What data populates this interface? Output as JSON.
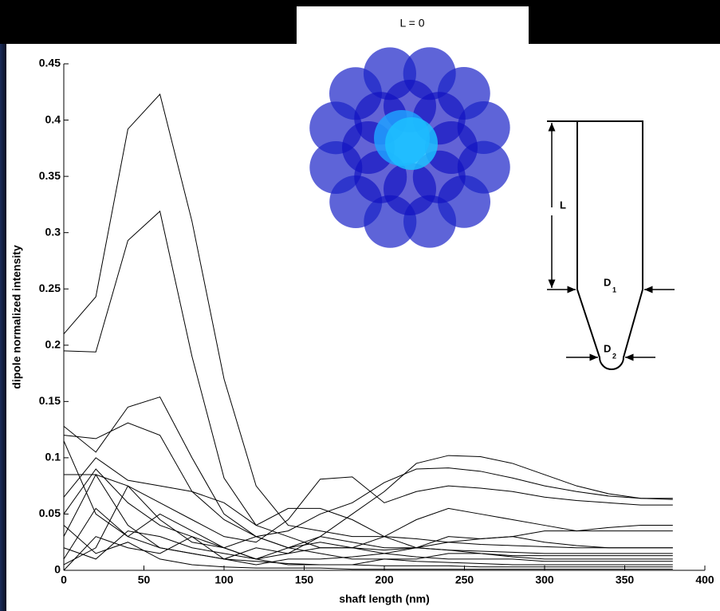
{
  "chart_data": {
    "type": "line",
    "xlabel": "shaft length (nm)",
    "ylabel": "dipole normalized intensity",
    "xlim": [
      0,
      400
    ],
    "xticks": [
      0,
      50,
      100,
      150,
      200,
      250,
      300,
      350,
      400
    ],
    "ylim": [
      0,
      0.45
    ],
    "yticks": [
      0,
      0.05,
      0.1,
      0.15,
      0.2,
      0.25,
      0.3,
      0.35,
      0.4,
      0.45
    ],
    "x": [
      0,
      20,
      40,
      60,
      80,
      100,
      120,
      140,
      160,
      180,
      200,
      220,
      240,
      260,
      280,
      300,
      320,
      340,
      360,
      380
    ],
    "series": [
      {
        "color": "#000000",
        "values": [
          0.21,
          0.243,
          0.392,
          0.423,
          0.31,
          0.17,
          0.075,
          0.04,
          0.035,
          0.03,
          0.03,
          0.028,
          0.025,
          0.023,
          0.022,
          0.021,
          0.02,
          0.02,
          0.02,
          0.02
        ]
      },
      {
        "color": "#000000",
        "values": [
          0.195,
          0.194,
          0.293,
          0.319,
          0.19,
          0.082,
          0.04,
          0.055,
          0.055,
          0.045,
          0.03,
          0.02,
          0.018,
          0.017,
          0.016,
          0.015,
          0.015,
          0.015,
          0.015,
          0.015
        ]
      },
      {
        "color": "#000000",
        "values": [
          0.128,
          0.105,
          0.145,
          0.154,
          0.1,
          0.05,
          0.03,
          0.035,
          0.05,
          0.06,
          0.078,
          0.09,
          0.091,
          0.088,
          0.082,
          0.075,
          0.07,
          0.066,
          0.064,
          0.063
        ]
      },
      {
        "color": "#000000",
        "values": [
          0.12,
          0.117,
          0.131,
          0.12,
          0.07,
          0.045,
          0.03,
          0.02,
          0.03,
          0.05,
          0.07,
          0.095,
          0.102,
          0.101,
          0.095,
          0.085,
          0.075,
          0.068,
          0.064,
          0.064
        ]
      },
      {
        "color": "#000000",
        "values": [
          0.085,
          0.085,
          0.075,
          0.06,
          0.045,
          0.03,
          0.025,
          0.045,
          0.081,
          0.083,
          0.06,
          0.07,
          0.075,
          0.073,
          0.07,
          0.065,
          0.062,
          0.06,
          0.058,
          0.058
        ]
      },
      {
        "color": "#000000",
        "values": [
          0.065,
          0.1,
          0.08,
          0.075,
          0.07,
          0.06,
          0.04,
          0.03,
          0.02,
          0.02,
          0.03,
          0.045,
          0.055,
          0.05,
          0.045,
          0.04,
          0.035,
          0.035,
          0.035,
          0.035
        ]
      },
      {
        "color": "#000000",
        "values": [
          0.115,
          0.05,
          0.03,
          0.02,
          0.015,
          0.01,
          0.008,
          0.006,
          0.005,
          0.005,
          0.004,
          0.004,
          0.004,
          0.003,
          0.003,
          0.003,
          0.003,
          0.003,
          0.003,
          0.003
        ]
      },
      {
        "color": "#000000",
        "values": [
          0.05,
          0.09,
          0.06,
          0.04,
          0.03,
          0.02,
          0.01,
          0.02,
          0.025,
          0.02,
          0.018,
          0.02,
          0.03,
          0.028,
          0.03,
          0.035,
          0.035,
          0.038,
          0.04,
          0.04
        ]
      },
      {
        "color": "#000000",
        "values": [
          0.03,
          0.085,
          0.04,
          0.02,
          0.015,
          0.01,
          0.005,
          0.01,
          0.01,
          0.012,
          0.015,
          0.02,
          0.025,
          0.028,
          0.03,
          0.025,
          0.022,
          0.02,
          0.02,
          0.02
        ]
      },
      {
        "color": "#000000",
        "values": [
          0.02,
          0.01,
          0.035,
          0.03,
          0.02,
          0.015,
          0.01,
          0.015,
          0.02,
          0.02,
          0.015,
          0.012,
          0.01,
          0.01,
          0.01,
          0.008,
          0.008,
          0.008,
          0.008,
          0.008
        ]
      },
      {
        "color": "#000000",
        "values": [
          0.01,
          0.055,
          0.03,
          0.05,
          0.035,
          0.02,
          0.01,
          0.005,
          0.005,
          0.005,
          0.01,
          0.01,
          0.015,
          0.015,
          0.012,
          0.01,
          0.01,
          0.01,
          0.01,
          0.01
        ]
      },
      {
        "color": "#000000",
        "values": [
          0.005,
          0.02,
          0.075,
          0.045,
          0.025,
          0.02,
          0.03,
          0.02,
          0.015,
          0.01,
          0.01,
          0.008,
          0.007,
          0.006,
          0.005,
          0.005,
          0.005,
          0.005,
          0.005,
          0.005
        ]
      },
      {
        "color": "#000000",
        "values": [
          0.0,
          0.03,
          0.02,
          0.015,
          0.03,
          0.01,
          0.02,
          0.015,
          0.03,
          0.025,
          0.02,
          0.02,
          0.018,
          0.015,
          0.013,
          0.013,
          0.013,
          0.013,
          0.013,
          0.013
        ]
      },
      {
        "color": "#000000",
        "values": [
          0.04,
          0.015,
          0.025,
          0.01,
          0.005,
          0.003,
          0.002,
          0.002,
          0.002,
          0.001,
          0.001,
          0.001,
          0.001,
          0.001,
          0.001,
          0.001,
          0.001,
          0.001,
          0.001,
          0.001
        ]
      }
    ],
    "annotations": {
      "inset_title": "L = 0",
      "length": "L",
      "d1": {
        "main": "D",
        "sub": "1"
      },
      "d2": {
        "main": "D",
        "sub": "2"
      }
    }
  }
}
